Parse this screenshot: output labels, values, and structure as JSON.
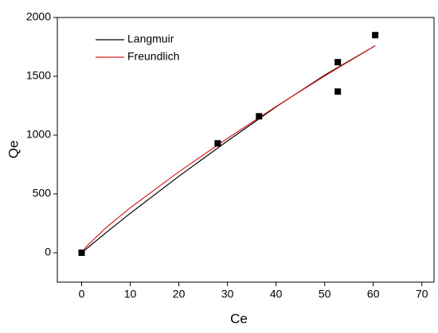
{
  "chart_data": {
    "type": "scatter",
    "x_label": "Ce",
    "y_label": "Qe",
    "xlim": [
      -5,
      72.5
    ],
    "ylim": [
      -250,
      2000
    ],
    "xticks": [
      0,
      10,
      20,
      30,
      40,
      50,
      60,
      70
    ],
    "yticks": [
      0,
      500,
      1000,
      1500,
      2000
    ],
    "points": {
      "color": "#000000",
      "x": [
        0,
        28,
        36.5,
        52.7,
        52.7,
        60.4
      ],
      "values": [
        0,
        930,
        1160,
        1620,
        1370,
        1850
      ]
    },
    "series": [
      {
        "name": "Langmuir",
        "color": "#000000",
        "x": [
          0,
          5,
          10,
          20,
          30,
          40,
          50,
          60.4
        ],
        "values": [
          0,
          170,
          335,
          650,
          950,
          1240,
          1510,
          1760
        ]
      },
      {
        "name": "Freundlich",
        "color": "#d62020",
        "x": [
          0,
          1,
          5,
          10,
          20,
          30,
          40,
          50,
          60.4
        ],
        "values": [
          0,
          54,
          212,
          382,
          688,
          972,
          1243,
          1503,
          1760
        ]
      }
    ],
    "legend": "upper-left"
  }
}
